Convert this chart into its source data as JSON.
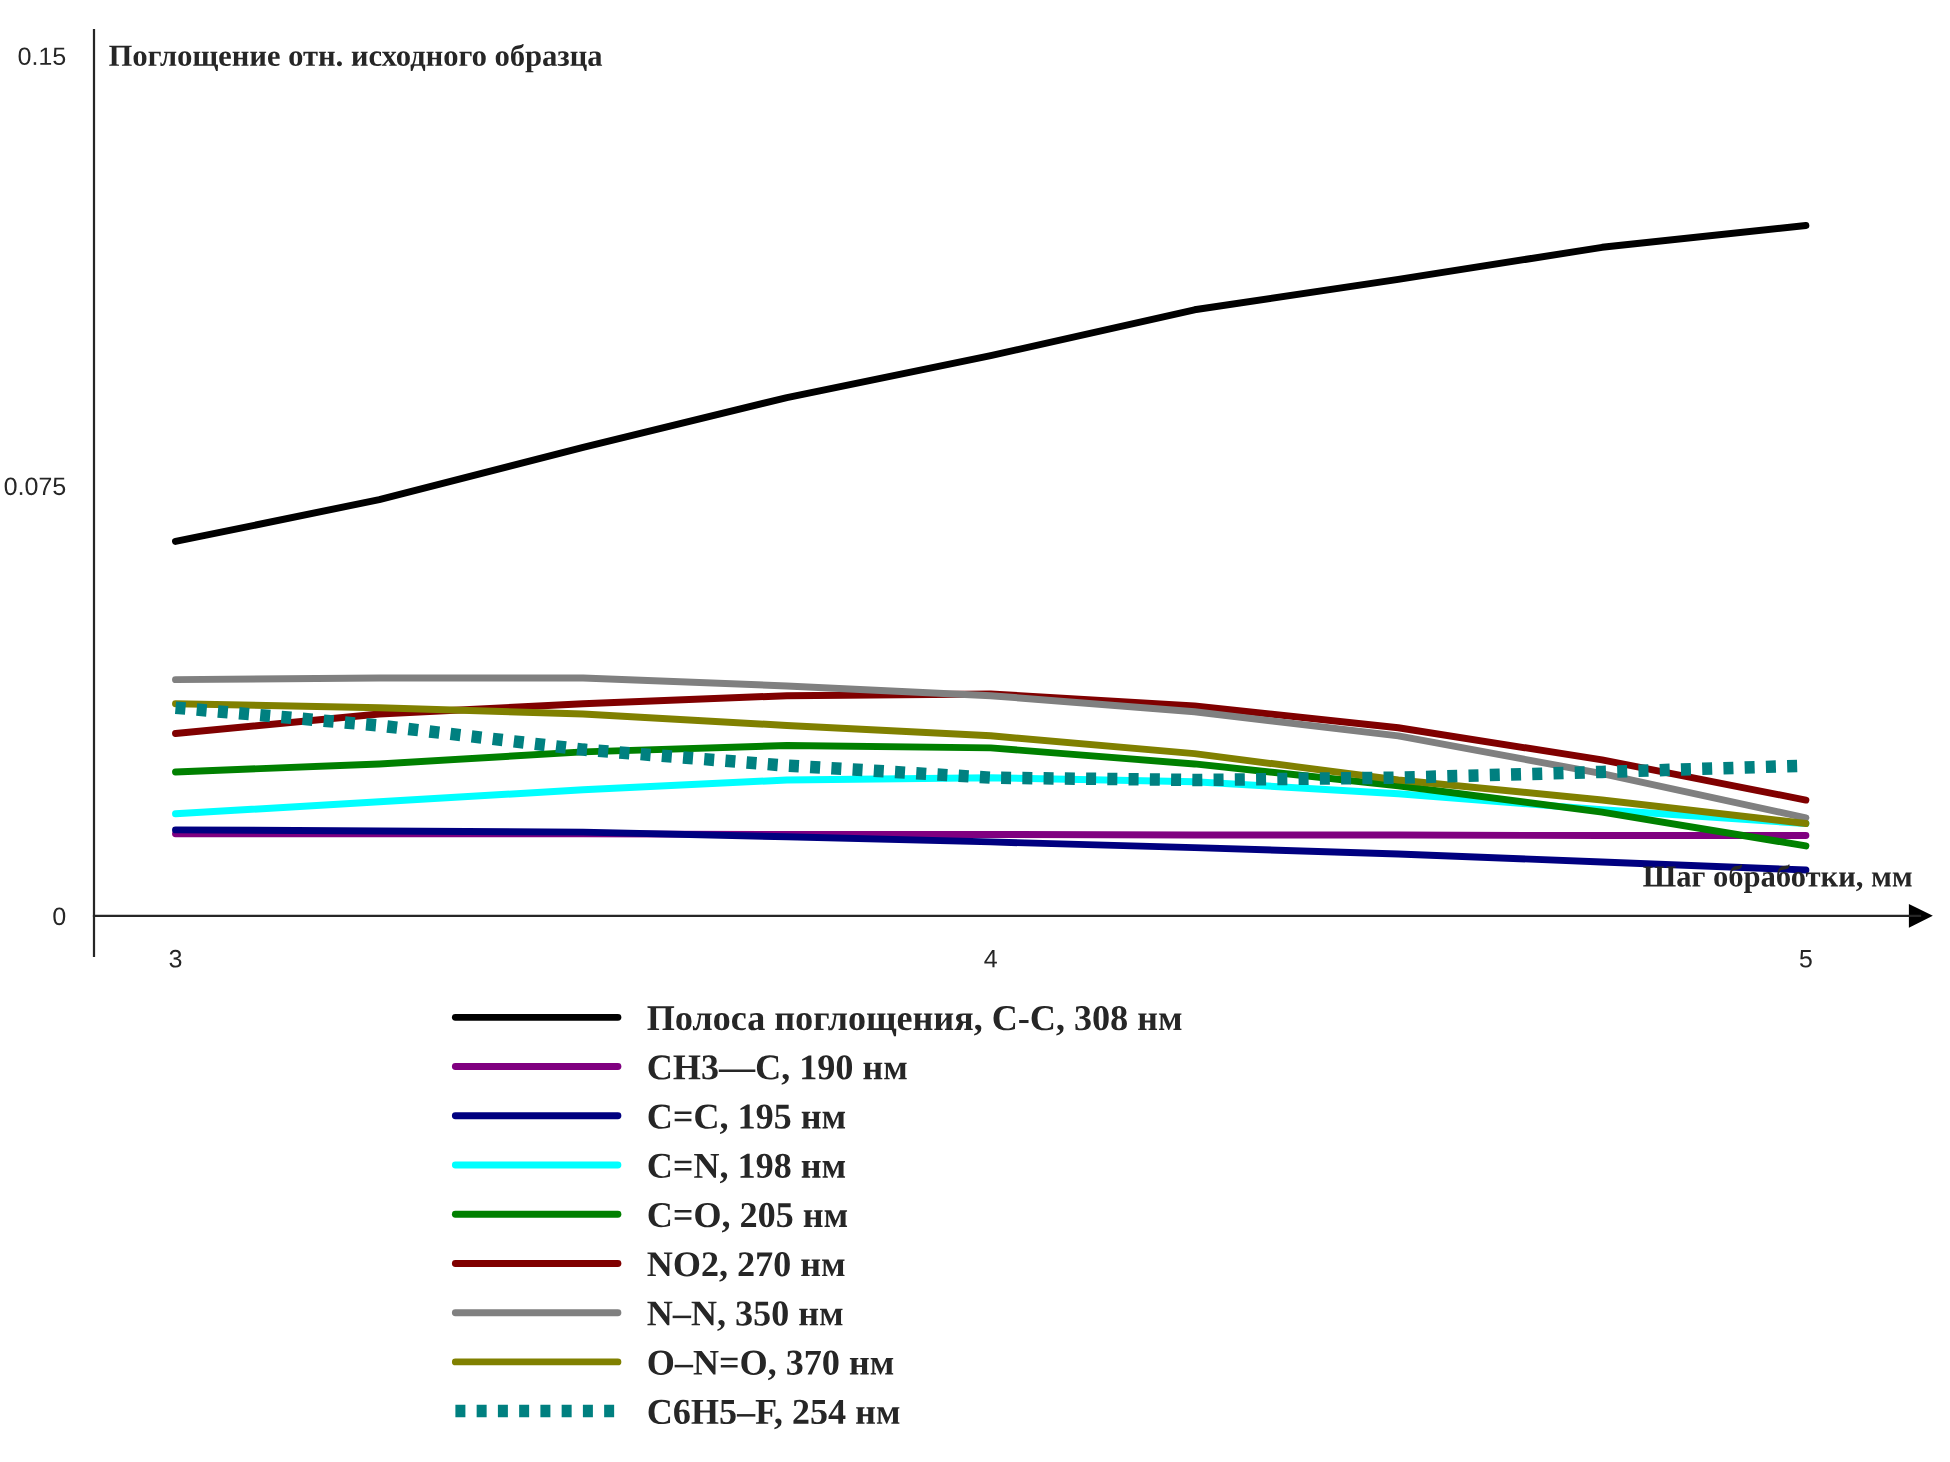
{
  "chart_data": {
    "type": "line",
    "xlabel": "Шаг обработки, мм",
    "ylabel": "Поглощение отн. исходного образца",
    "x": [
      3,
      3.25,
      3.5,
      3.75,
      4,
      4.25,
      4.5,
      4.75,
      5
    ],
    "xlim": [
      2.9,
      5.14
    ],
    "ylim": [
      -0.007,
      0.1545
    ],
    "xticks": [
      3,
      4,
      5
    ],
    "yticks": [
      0,
      0.075,
      0.15
    ],
    "grid": false,
    "legend": "bottom",
    "marker": "none",
    "series": [
      {
        "name": "Полоса поглощения, C-C, 308 нм",
        "color": "#000000",
        "values": [
          0.0653,
          0.0726,
          0.0817,
          0.0904,
          0.0977,
          0.1057,
          0.111,
          0.1166,
          0.1204
        ]
      },
      {
        "name": "CH3—C, 190 нм",
        "color": "#800080",
        "values": [
          0.0143,
          0.0143,
          0.0143,
          0.0142,
          0.0142,
          0.0141,
          0.0141,
          0.014,
          0.014
        ]
      },
      {
        "name": "C=C, 195 нм",
        "color": "#000080",
        "values": [
          0.015,
          0.0148,
          0.0146,
          0.0138,
          0.0129,
          0.0119,
          0.0108,
          0.0094,
          0.008
        ]
      },
      {
        "name": "C=N, 198 нм",
        "color": "#00ffff",
        "values": [
          0.0178,
          0.0199,
          0.022,
          0.0237,
          0.0241,
          0.0234,
          0.0213,
          0.0185,
          0.0161
        ]
      },
      {
        "name": "C=O, 205 нм",
        "color": "#008000",
        "values": [
          0.0251,
          0.0265,
          0.0286,
          0.0297,
          0.0293,
          0.0265,
          0.0227,
          0.0181,
          0.0122
        ]
      },
      {
        "name": "NO2, 270 нм",
        "color": "#800000",
        "values": [
          0.0318,
          0.0352,
          0.037,
          0.0384,
          0.0387,
          0.0366,
          0.0328,
          0.0272,
          0.0202
        ]
      },
      {
        "name": "N–N, 350 нм",
        "color": "#808080",
        "values": [
          0.0412,
          0.0415,
          0.0415,
          0.0401,
          0.0384,
          0.0356,
          0.0314,
          0.0248,
          0.0171
        ]
      },
      {
        "name": "O–N=O, 370 нм",
        "color": "#808000",
        "values": [
          0.037,
          0.0363,
          0.0352,
          0.0332,
          0.0314,
          0.0283,
          0.0237,
          0.0202,
          0.0161
        ]
      },
      {
        "name": "C6H5–F, 254 нм",
        "color": "#008080",
        "line_style": "dotted",
        "values": [
          0.0363,
          0.0332,
          0.029,
          0.0262,
          0.0241,
          0.0237,
          0.0241,
          0.0251,
          0.0262
        ]
      }
    ]
  }
}
